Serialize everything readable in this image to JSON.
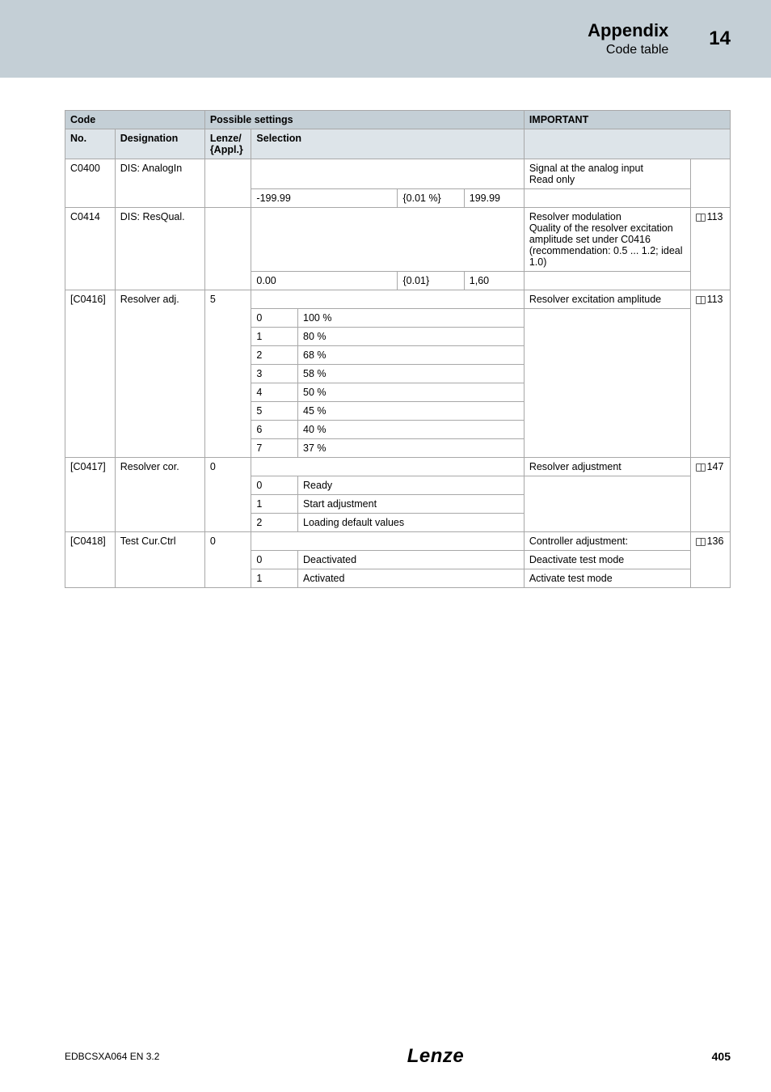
{
  "header": {
    "title": "Appendix",
    "subtitle": "Code table",
    "number": "14"
  },
  "table": {
    "head": {
      "code": "Code",
      "possible": "Possible settings",
      "important": "IMPORTANT",
      "no": "No.",
      "designation": "Designation",
      "lenze": "Lenze/\n{Appl.}",
      "selection": "Selection"
    },
    "rows": {
      "r1": {
        "no": "C0400",
        "des": "DIS: AnalogIn",
        "imp": "Signal at the analog input\nRead only",
        "min": "-199.99",
        "step": "{0.01 %}",
        "max": "199.99"
      },
      "r2": {
        "no": "C0414",
        "des": "DIS: ResQual.",
        "imp": "Resolver modulation\nQuality of the resolver excitation amplitude set under C0416\n(recommendation: 0.5 ... 1.2; ideal 1.0)",
        "ref": "113",
        "min": "0.00",
        "step": "{0.01}",
        "max": "1,60"
      },
      "r3": {
        "no": "[C0416]",
        "des": "Resolver adj.",
        "lenze": "5",
        "imp": "Resolver excitation amplitude",
        "ref": "113",
        "opts": [
          {
            "k": "0",
            "v": "100 %"
          },
          {
            "k": "1",
            "v": "80 %"
          },
          {
            "k": "2",
            "v": "68 %"
          },
          {
            "k": "3",
            "v": "58 %"
          },
          {
            "k": "4",
            "v": "50 %"
          },
          {
            "k": "5",
            "v": "45 %"
          },
          {
            "k": "6",
            "v": "40 %"
          },
          {
            "k": "7",
            "v": "37 %"
          }
        ]
      },
      "r4": {
        "no": "[C0417]",
        "des": "Resolver cor.",
        "lenze": "0",
        "imp": "Resolver adjustment",
        "ref": "147",
        "opts": [
          {
            "k": "0",
            "v": "Ready"
          },
          {
            "k": "1",
            "v": "Start adjustment"
          },
          {
            "k": "2",
            "v": "Loading default values"
          }
        ]
      },
      "r5": {
        "no": "[C0418]",
        "des": "Test Cur.Ctrl",
        "lenze": "0",
        "imp": "Controller adjustment:",
        "ref": "136",
        "opts": [
          {
            "k": "0",
            "v": "Deactivated",
            "note": "Deactivate test mode"
          },
          {
            "k": "1",
            "v": "Activated",
            "note": "Activate test mode"
          }
        ]
      }
    }
  },
  "footer": {
    "doc": "EDBCSXA064  EN  3.2",
    "logo": "Lenze",
    "page": "405"
  }
}
